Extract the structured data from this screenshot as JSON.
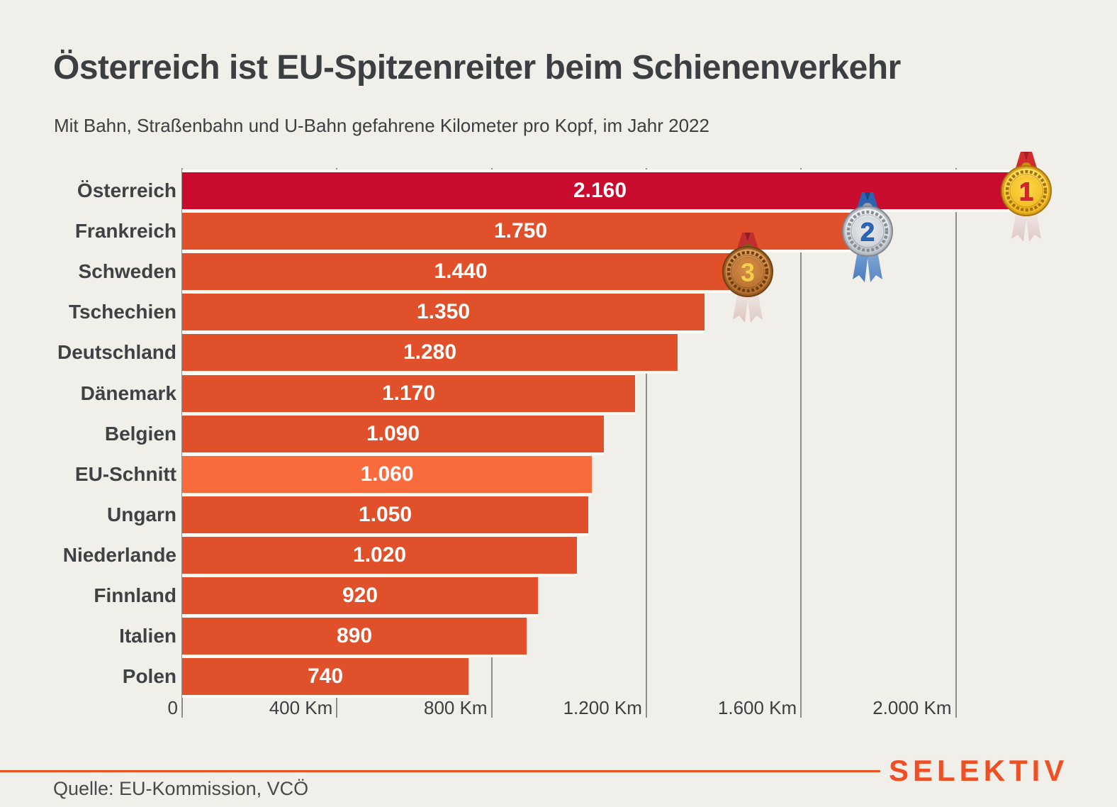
{
  "header": {
    "title": "Österreich ist EU-Spitzenreiter beim Schienenverkehr",
    "subtitle": "Mit Bahn, Straßenbahn und U-Bahn gefahrene Kilometer pro Kopf, im Jahr 2022"
  },
  "chart_data": {
    "type": "bar",
    "orientation": "horizontal",
    "title": "Österreich ist EU-Spitzenreiter beim Schienenverkehr",
    "subtitle": "Mit Bahn, Straßenbahn und U-Bahn gefahrene Kilometer pro Kopf, im Jahr 2022",
    "categories": [
      "Österreich",
      "Frankreich",
      "Schweden",
      "Tschechien",
      "Deutschland",
      "Dänemark",
      "Belgien",
      "EU-Schnitt",
      "Ungarn",
      "Niederlande",
      "Finnland",
      "Italien",
      "Polen"
    ],
    "values": [
      2160,
      1750,
      1440,
      1350,
      1280,
      1170,
      1090,
      1060,
      1050,
      1020,
      920,
      890,
      740
    ],
    "value_labels": [
      "2.160",
      "1.750",
      "1.440",
      "1.350",
      "1.280",
      "1.170",
      "1.090",
      "1.060",
      "1.050",
      "1.020",
      "920",
      "890",
      "740"
    ],
    "xlim": [
      0,
      2280
    ],
    "xticks": [
      {
        "v": 0,
        "label": "0"
      },
      {
        "v": 400,
        "label": "400 Km"
      },
      {
        "v": 800,
        "label": "800 Km"
      },
      {
        "v": 1200,
        "label": "1.200 Km"
      },
      {
        "v": 1600,
        "label": "1.600 Km"
      },
      {
        "v": 2000,
        "label": "2.000 Km"
      }
    ],
    "grid": true,
    "legend": "none",
    "medals": [
      {
        "rank": "1",
        "category": "Österreich",
        "type": "gold"
      },
      {
        "rank": "2",
        "category": "Frankreich",
        "type": "silver"
      },
      {
        "rank": "3",
        "category": "Schweden",
        "type": "bronze"
      }
    ]
  },
  "colors": {
    "background": "#f1efe9",
    "bar": "#e0502a",
    "leader_bar": "#c90b2d",
    "eu_bar": "#f96a3c",
    "leader_category": "Österreich",
    "eu_category": "EU-Schnitt",
    "text": "#3c3f42",
    "value_text": "#ffffff",
    "gridline": "#8f8d87",
    "accent": "#f04e23"
  },
  "footer": {
    "logo": "SELEKTIV",
    "source": "Quelle: EU-Kommission, VCÖ"
  }
}
